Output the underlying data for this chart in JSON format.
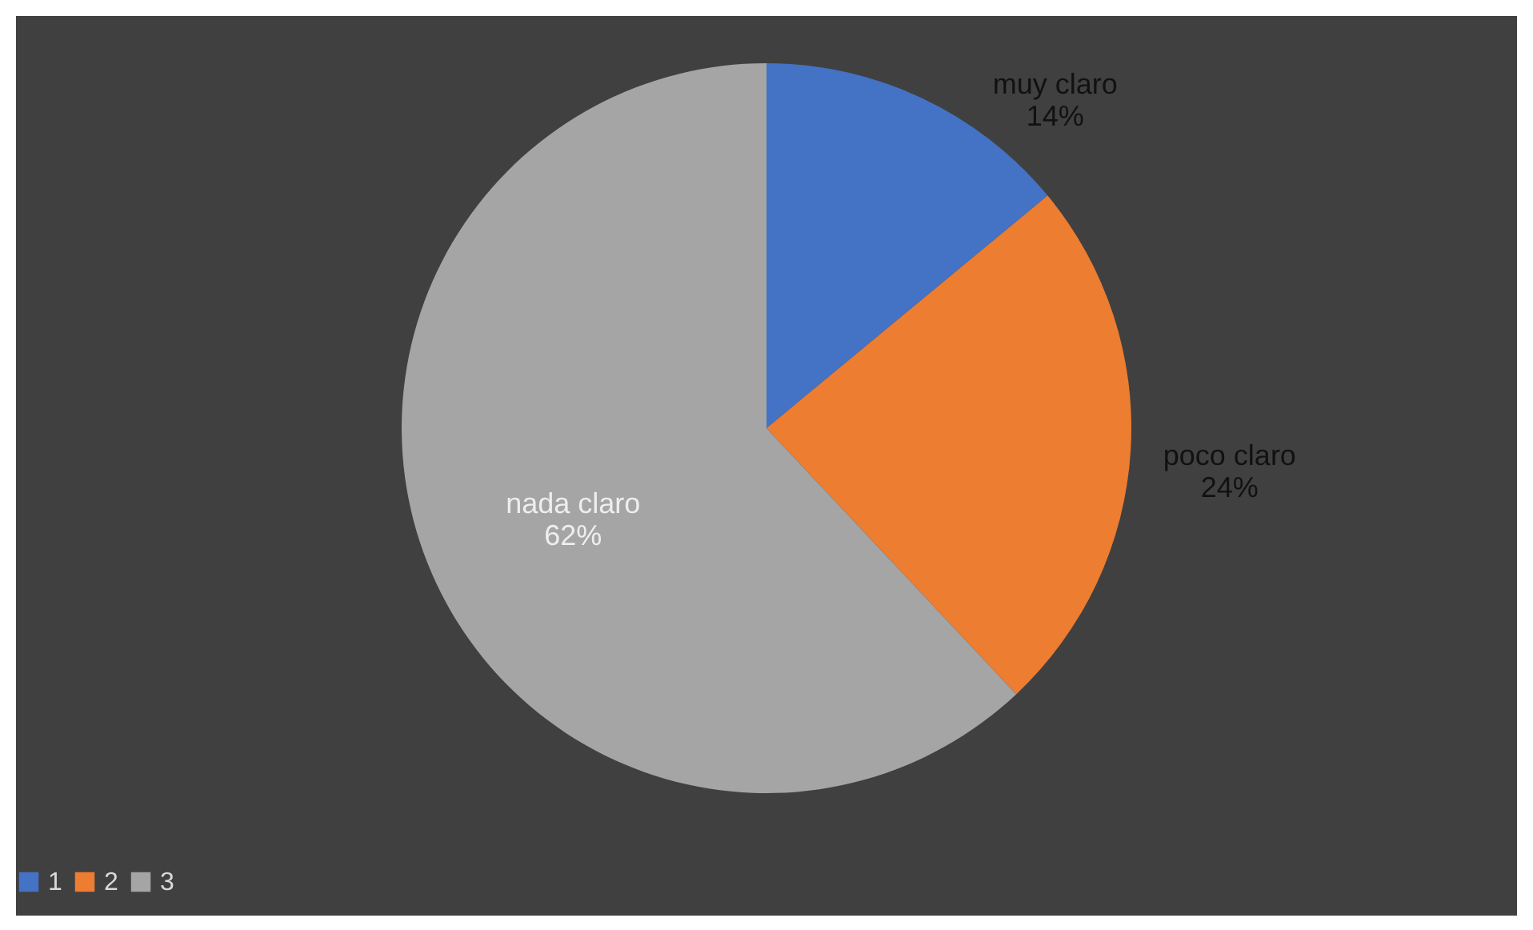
{
  "chart_data": {
    "type": "pie",
    "categories": [
      "1",
      "2",
      "3"
    ],
    "values": [
      14,
      24,
      62
    ],
    "colors": [
      "#4472c4",
      "#ed7d31",
      "#a5a5a5"
    ],
    "value_labels": [
      "muy claro\n14%",
      "poco claro\n24%",
      "nada claro\n62%"
    ],
    "legend": "bottom"
  }
}
